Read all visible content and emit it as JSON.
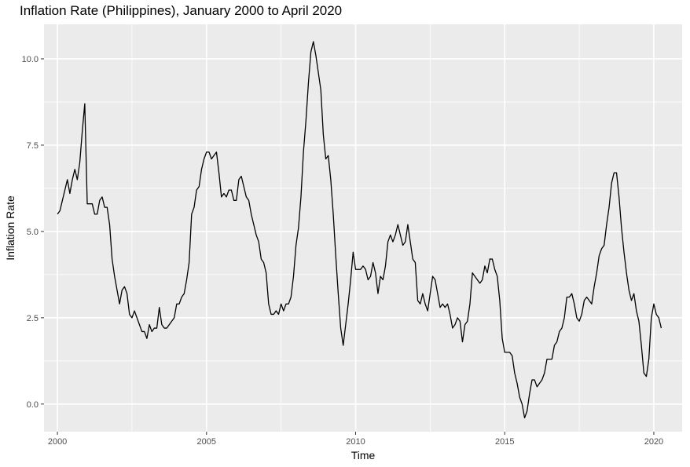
{
  "chart_data": {
    "type": "line",
    "title": "Inflation Rate (Philippines), January 2000 to April 2020",
    "xlabel": "Time",
    "ylabel": "Inflation Rate",
    "xlim": [
      1999.55,
      2020.95
    ],
    "ylim": [
      -0.8,
      11.0
    ],
    "x_ticks": [
      2000,
      2005,
      2010,
      2015,
      2020
    ],
    "x_tick_labels": [
      "2000",
      "2005",
      "2010",
      "2015",
      "2020"
    ],
    "y_ticks": [
      0.0,
      2.5,
      5.0,
      7.5,
      10.0
    ],
    "y_tick_labels": [
      "0.0",
      "2.5",
      "5.0",
      "7.5",
      "10.0"
    ],
    "grid": true,
    "panel_color": "#ebebeb",
    "grid_color": "#ffffff",
    "line_color": "#000000",
    "x_start": 2000.0,
    "x_step": 0.08333333,
    "series": [
      {
        "values": [
          5.5,
          5.6,
          5.9,
          6.2,
          6.5,
          6.1,
          6.5,
          6.8,
          6.5,
          7.0,
          7.9,
          8.7,
          5.8,
          5.8,
          5.8,
          5.5,
          5.5,
          5.9,
          6.0,
          5.7,
          5.7,
          5.2,
          4.2,
          3.7,
          3.3,
          2.9,
          3.3,
          3.4,
          3.2,
          2.6,
          2.5,
          2.7,
          2.5,
          2.3,
          2.1,
          2.1,
          1.9,
          2.3,
          2.1,
          2.2,
          2.2,
          2.8,
          2.3,
          2.2,
          2.2,
          2.3,
          2.4,
          2.5,
          2.9,
          2.9,
          3.1,
          3.2,
          3.6,
          4.1,
          5.5,
          5.7,
          6.2,
          6.3,
          6.8,
          7.1,
          7.3,
          7.3,
          7.1,
          7.2,
          7.3,
          6.7,
          6.0,
          6.1,
          6.0,
          6.2,
          6.2,
          5.9,
          5.9,
          6.5,
          6.6,
          6.3,
          6.0,
          5.9,
          5.5,
          5.2,
          4.9,
          4.7,
          4.2,
          4.1,
          3.8,
          2.9,
          2.6,
          2.6,
          2.7,
          2.6,
          2.9,
          2.7,
          2.9,
          2.9,
          3.1,
          3.7,
          4.6,
          5.1,
          6.0,
          7.3,
          8.2,
          9.3,
          10.2,
          10.5,
          10.1,
          9.6,
          9.1,
          7.8,
          7.1,
          7.2,
          6.5,
          5.5,
          4.3,
          3.2,
          2.2,
          1.7,
          2.3,
          2.9,
          3.6,
          4.4,
          3.9,
          3.9,
          3.9,
          4.0,
          3.9,
          3.6,
          3.7,
          4.1,
          3.8,
          3.2,
          3.7,
          3.6,
          4.0,
          4.7,
          4.9,
          4.7,
          4.9,
          5.2,
          4.9,
          4.6,
          4.7,
          5.2,
          4.7,
          4.2,
          4.1,
          3.0,
          2.9,
          3.2,
          2.9,
          2.7,
          3.2,
          3.7,
          3.6,
          3.2,
          2.8,
          2.9,
          2.8,
          2.9,
          2.6,
          2.2,
          2.3,
          2.5,
          2.4,
          1.8,
          2.3,
          2.4,
          2.9,
          3.8,
          3.7,
          3.6,
          3.5,
          3.6,
          4.0,
          3.8,
          4.2,
          4.2,
          3.9,
          3.7,
          3.0,
          1.9,
          1.5,
          1.5,
          1.5,
          1.4,
          0.9,
          0.6,
          0.2,
          0.0,
          -0.4,
          -0.2,
          0.3,
          0.7,
          0.7,
          0.5,
          0.6,
          0.7,
          0.9,
          1.3,
          1.3,
          1.3,
          1.7,
          1.8,
          2.1,
          2.2,
          2.5,
          3.1,
          3.1,
          3.2,
          2.9,
          2.5,
          2.4,
          2.6,
          3.0,
          3.1,
          3.0,
          2.9,
          3.4,
          3.8,
          4.3,
          4.5,
          4.6,
          5.2,
          5.7,
          6.4,
          6.7,
          6.7,
          6.0,
          5.1,
          4.4,
          3.8,
          3.3,
          3.0,
          3.2,
          2.7,
          2.4,
          1.7,
          0.9,
          0.8,
          1.3,
          2.5,
          2.9,
          2.6,
          2.5,
          2.2
        ]
      }
    ]
  }
}
